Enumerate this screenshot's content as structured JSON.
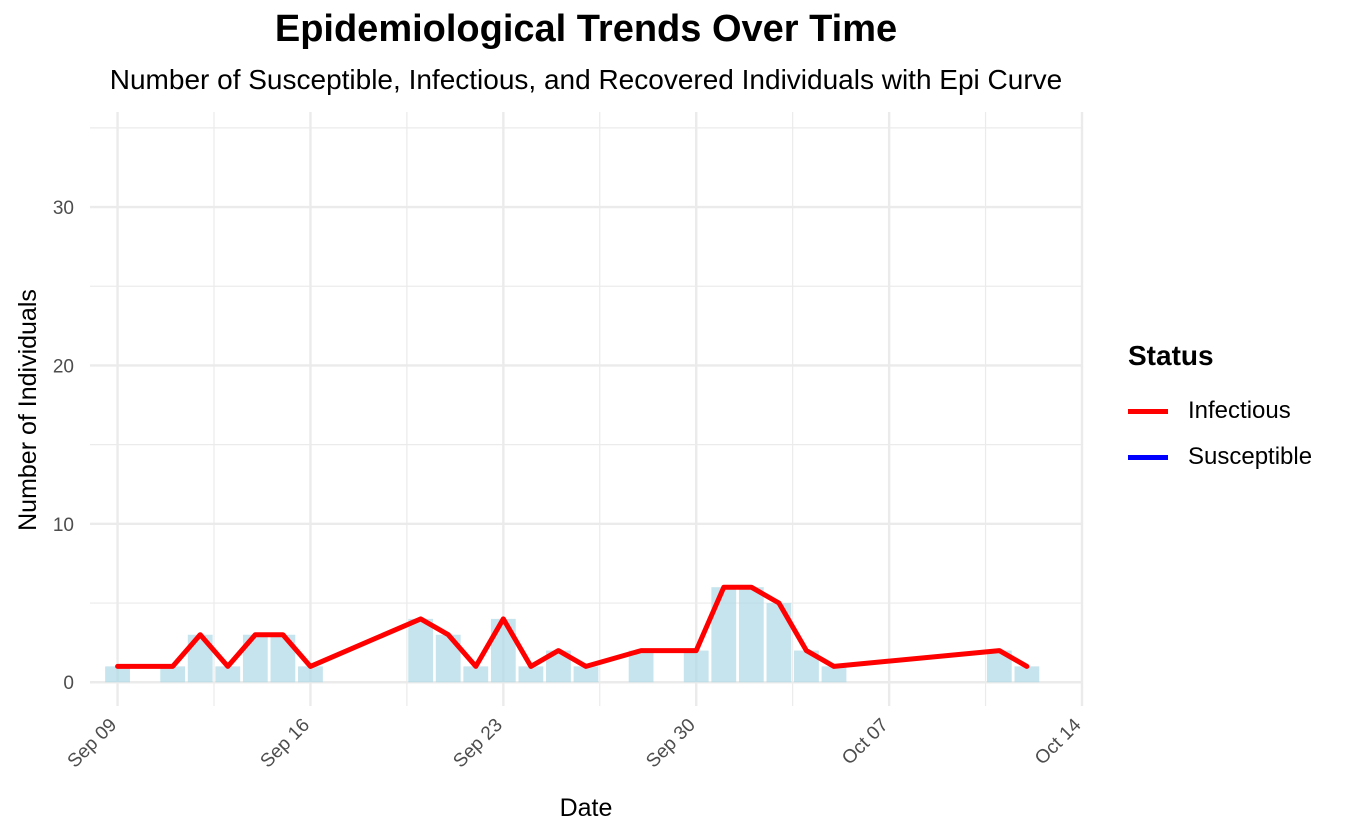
{
  "title": "Epidemiological Trends Over Time",
  "subtitle": "Number of Susceptible, Infectious, and Recovered Individuals with Epi Curve",
  "legend": {
    "title": "Status",
    "items": [
      {
        "label": "Infectious",
        "color": "#ff0000"
      },
      {
        "label": "Susceptible",
        "color": "#0000ff"
      }
    ]
  },
  "chart_data": {
    "type": "bar",
    "title": "Epidemiological Trends Over Time",
    "subtitle": "Number of Susceptible, Infectious, and Recovered Individuals with Epi Curve",
    "xlabel": "Date",
    "ylabel": "Number of Individuals",
    "xlim": [
      "2024-09-08",
      "2024-10-14"
    ],
    "ylim": [
      -1.5,
      36
    ],
    "x_ticks": [
      "Sep 09",
      "Sep 16",
      "Sep 23",
      "Sep 30",
      "Oct 07",
      "Oct 14"
    ],
    "y_ticks": [
      0,
      10,
      20,
      30
    ],
    "grid": true,
    "legend_position": "right",
    "bars": {
      "color": "#add8e6",
      "dates": [
        "2024-09-09",
        "2024-09-11",
        "2024-09-12",
        "2024-09-13",
        "2024-09-14",
        "2024-09-15",
        "2024-09-16",
        "2024-09-20",
        "2024-09-21",
        "2024-09-22",
        "2024-09-23",
        "2024-09-24",
        "2024-09-25",
        "2024-09-26",
        "2024-09-28",
        "2024-09-30",
        "2024-10-01",
        "2024-10-02",
        "2024-10-03",
        "2024-10-04",
        "2024-10-05",
        "2024-10-11",
        "2024-10-12"
      ],
      "values": [
        1,
        1,
        3,
        1,
        3,
        3,
        1,
        4,
        3,
        1,
        4,
        1,
        2,
        1,
        2,
        2,
        6,
        6,
        5,
        2,
        1,
        2,
        1
      ]
    },
    "series": [
      {
        "name": "Infectious",
        "color": "#ff0000",
        "dates": [
          "2024-09-09",
          "2024-09-11",
          "2024-09-12",
          "2024-09-13",
          "2024-09-14",
          "2024-09-15",
          "2024-09-16",
          "2024-09-20",
          "2024-09-21",
          "2024-09-22",
          "2024-09-23",
          "2024-09-24",
          "2024-09-25",
          "2024-09-26",
          "2024-09-28",
          "2024-09-30",
          "2024-10-01",
          "2024-10-02",
          "2024-10-03",
          "2024-10-04",
          "2024-10-05",
          "2024-10-11",
          "2024-10-12"
        ],
        "values": [
          1,
          1,
          3,
          1,
          3,
          3,
          1,
          4,
          3,
          1,
          4,
          1,
          2,
          1,
          2,
          2,
          6,
          6,
          5,
          2,
          1,
          2,
          1
        ]
      },
      {
        "name": "Susceptible",
        "color": "#0000ff",
        "dates": [],
        "values": []
      }
    ]
  }
}
